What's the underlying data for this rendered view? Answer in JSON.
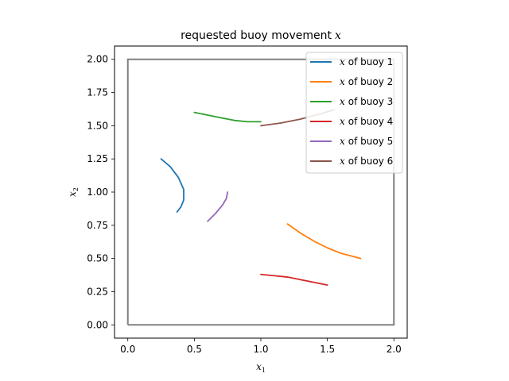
{
  "chart_data": {
    "type": "line",
    "title": "requested buoy movement",
    "title_math": "x",
    "xlabel": "x",
    "xlabel_sub": "1",
    "ylabel": "x",
    "ylabel_sub": "2",
    "xlim": [
      -0.1,
      2.1
    ],
    "ylim": [
      -0.1,
      2.1
    ],
    "xticks": [
      "0.0",
      "0.5",
      "1.0",
      "1.5",
      "2.0"
    ],
    "yticks": [
      "0.00",
      "0.25",
      "0.50",
      "0.75",
      "1.00",
      "1.25",
      "1.50",
      "1.75",
      "2.00"
    ],
    "boundary": {
      "x": [
        0,
        2,
        2,
        0,
        0
      ],
      "y": [
        0,
        0,
        2,
        2,
        0
      ],
      "color": "#808080"
    },
    "legend_position": "top-right",
    "series": [
      {
        "name": "of buoy 1",
        "color": "#1f77b4",
        "x": [
          0.25,
          0.32,
          0.38,
          0.42,
          0.42,
          0.4,
          0.37
        ],
        "y": [
          1.25,
          1.19,
          1.11,
          1.02,
          0.94,
          0.89,
          0.85
        ]
      },
      {
        "name": "of buoy 2",
        "color": "#ff7f0e",
        "x": [
          1.2,
          1.3,
          1.4,
          1.5,
          1.6,
          1.75
        ],
        "y": [
          0.76,
          0.69,
          0.63,
          0.58,
          0.54,
          0.5
        ]
      },
      {
        "name": "of buoy 3",
        "color": "#2ca02c",
        "x": [
          0.5,
          0.6,
          0.7,
          0.8,
          0.9,
          1.0
        ],
        "y": [
          1.6,
          1.58,
          1.56,
          1.54,
          1.53,
          1.53
        ]
      },
      {
        "name": "of buoy 4",
        "color": "#d62728",
        "x": [
          1.0,
          1.1,
          1.2,
          1.3,
          1.4,
          1.5
        ],
        "y": [
          0.38,
          0.37,
          0.36,
          0.34,
          0.32,
          0.3
        ]
      },
      {
        "name": "of buoy 5",
        "color": "#9467bd",
        "x": [
          0.6,
          0.66,
          0.71,
          0.74,
          0.75
        ],
        "y": [
          0.78,
          0.84,
          0.9,
          0.95,
          1.0
        ]
      },
      {
        "name": "of buoy 6",
        "color": "#8c564b",
        "x": [
          1.0,
          1.15,
          1.3,
          1.45,
          1.55
        ],
        "y": [
          1.5,
          1.52,
          1.55,
          1.59,
          1.62
        ]
      }
    ],
    "legend_math": "x"
  }
}
